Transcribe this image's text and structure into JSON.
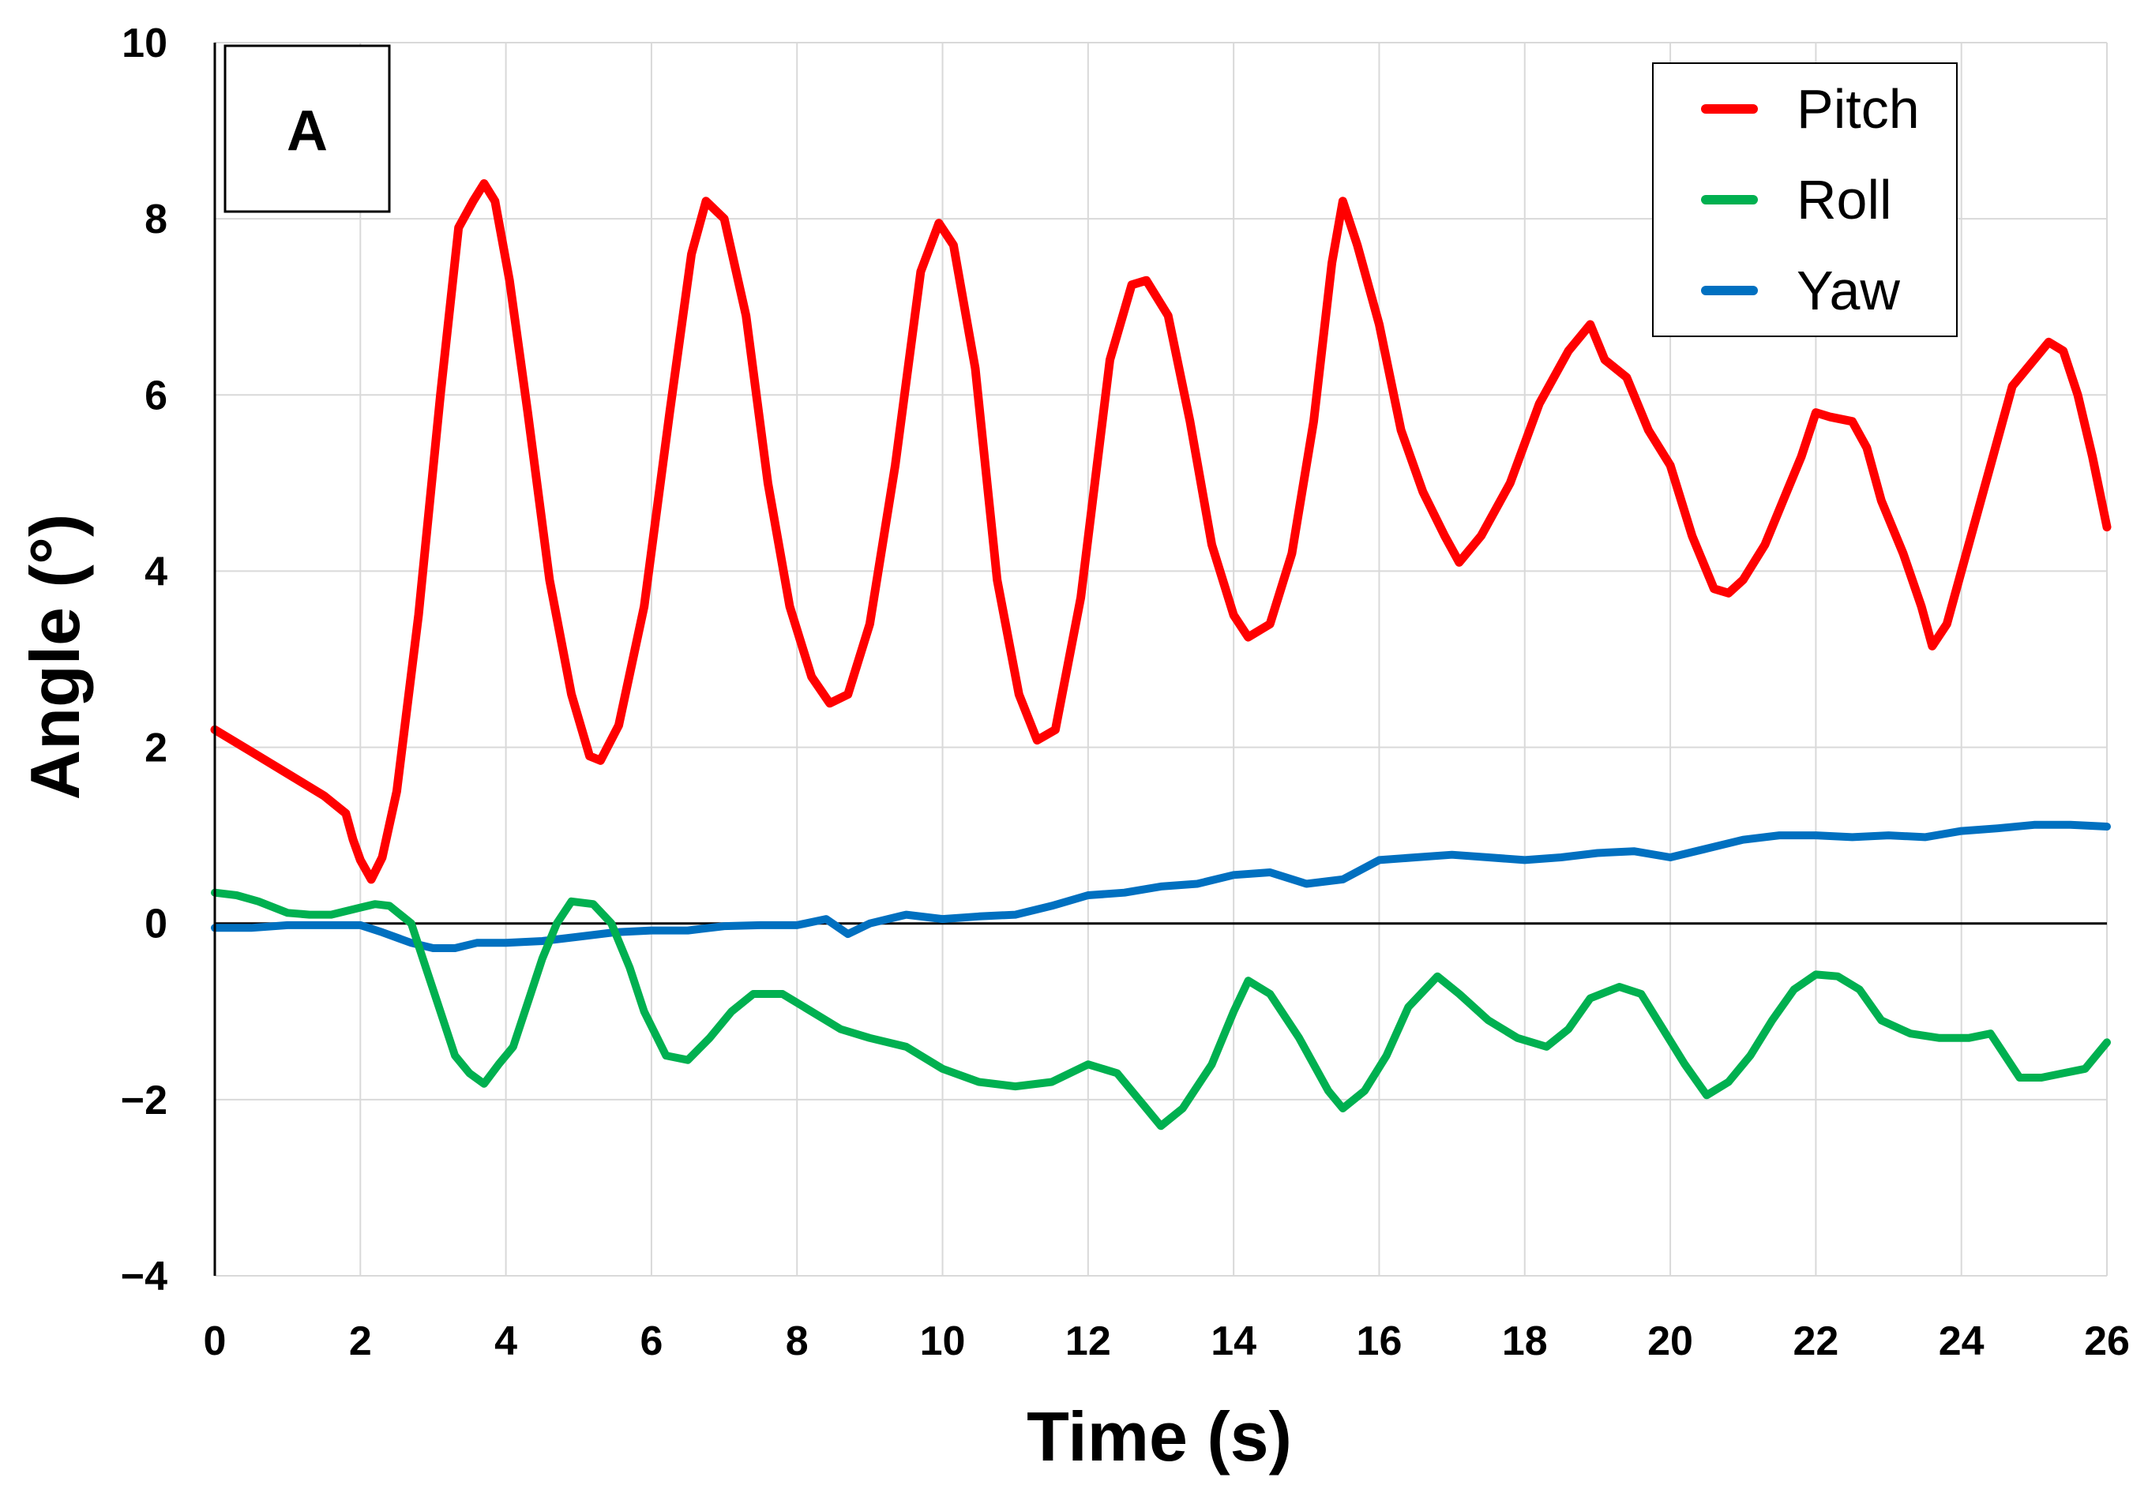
{
  "chart_data": {
    "type": "line",
    "panel_label": "A",
    "title": "",
    "xlabel": "Time (s)",
    "ylabel": "Angle (°)",
    "xlim": [
      0,
      26
    ],
    "ylim": [
      -4,
      10
    ],
    "x_ticks": [
      "0",
      "2",
      "4",
      "6",
      "8",
      "10",
      "12",
      "14",
      "16",
      "18",
      "20",
      "22",
      "24",
      "26"
    ],
    "y_ticks": [
      "−4",
      "−2",
      "0",
      "2",
      "4",
      "6",
      "8",
      "10"
    ],
    "grid": true,
    "legend_position": "top-right",
    "series": [
      {
        "name": "Pitch",
        "color": "#ff0000",
        "points": [
          [
            0,
            2.2
          ],
          [
            0.5,
            1.95
          ],
          [
            1.0,
            1.7
          ],
          [
            1.5,
            1.45
          ],
          [
            1.8,
            1.25
          ],
          [
            1.9,
            0.95
          ],
          [
            2.0,
            0.72
          ],
          [
            2.15,
            0.5
          ],
          [
            2.3,
            0.75
          ],
          [
            2.5,
            1.5
          ],
          [
            2.8,
            3.5
          ],
          [
            3.1,
            6.0
          ],
          [
            3.35,
            7.9
          ],
          [
            3.55,
            8.2
          ],
          [
            3.7,
            8.4
          ],
          [
            3.85,
            8.2
          ],
          [
            4.05,
            7.3
          ],
          [
            4.3,
            5.8
          ],
          [
            4.6,
            3.9
          ],
          [
            4.9,
            2.6
          ],
          [
            5.15,
            1.9
          ],
          [
            5.3,
            1.85
          ],
          [
            5.55,
            2.25
          ],
          [
            5.9,
            3.6
          ],
          [
            6.25,
            5.8
          ],
          [
            6.55,
            7.6
          ],
          [
            6.75,
            8.2
          ],
          [
            7.0,
            8.0
          ],
          [
            7.3,
            6.9
          ],
          [
            7.6,
            5.0
          ],
          [
            7.9,
            3.6
          ],
          [
            8.2,
            2.8
          ],
          [
            8.45,
            2.5
          ],
          [
            8.7,
            2.6
          ],
          [
            9.0,
            3.4
          ],
          [
            9.35,
            5.2
          ],
          [
            9.7,
            7.4
          ],
          [
            9.95,
            7.95
          ],
          [
            10.15,
            7.7
          ],
          [
            10.45,
            6.3
          ],
          [
            10.75,
            3.9
          ],
          [
            11.05,
            2.6
          ],
          [
            11.3,
            2.08
          ],
          [
            11.55,
            2.2
          ],
          [
            11.9,
            3.7
          ],
          [
            12.3,
            6.4
          ],
          [
            12.6,
            7.25
          ],
          [
            12.8,
            7.3
          ],
          [
            13.1,
            6.9
          ],
          [
            13.4,
            5.7
          ],
          [
            13.7,
            4.3
          ],
          [
            14.0,
            3.5
          ],
          [
            14.2,
            3.25
          ],
          [
            14.5,
            3.4
          ],
          [
            14.8,
            4.2
          ],
          [
            15.1,
            5.7
          ],
          [
            15.35,
            7.5
          ],
          [
            15.5,
            8.2
          ],
          [
            15.7,
            7.7
          ],
          [
            16.0,
            6.8
          ],
          [
            16.3,
            5.6
          ],
          [
            16.6,
            4.9
          ],
          [
            16.9,
            4.4
          ],
          [
            17.1,
            4.1
          ],
          [
            17.4,
            4.4
          ],
          [
            17.8,
            5.0
          ],
          [
            18.2,
            5.9
          ],
          [
            18.6,
            6.5
          ],
          [
            18.9,
            6.8
          ],
          [
            19.1,
            6.4
          ],
          [
            19.4,
            6.2
          ],
          [
            19.7,
            5.6
          ],
          [
            20.0,
            5.2
          ],
          [
            20.3,
            4.4
          ],
          [
            20.6,
            3.8
          ],
          [
            20.8,
            3.75
          ],
          [
            21.0,
            3.9
          ],
          [
            21.3,
            4.3
          ],
          [
            21.6,
            4.9
          ],
          [
            21.8,
            5.3
          ],
          [
            22.0,
            5.8
          ],
          [
            22.2,
            5.75
          ],
          [
            22.5,
            5.7
          ],
          [
            22.7,
            5.4
          ],
          [
            22.9,
            4.8
          ],
          [
            23.2,
            4.2
          ],
          [
            23.45,
            3.6
          ],
          [
            23.6,
            3.15
          ],
          [
            23.8,
            3.4
          ],
          [
            24.1,
            4.3
          ],
          [
            24.4,
            5.2
          ],
          [
            24.7,
            6.1
          ],
          [
            24.95,
            6.35
          ],
          [
            25.2,
            6.6
          ],
          [
            25.4,
            6.5
          ],
          [
            25.6,
            6.0
          ],
          [
            25.8,
            5.3
          ],
          [
            26.0,
            4.5
          ]
        ]
      },
      {
        "name": "Roll",
        "color": "#00b050",
        "points": [
          [
            0,
            0.35
          ],
          [
            0.3,
            0.32
          ],
          [
            0.6,
            0.25
          ],
          [
            1.0,
            0.12
          ],
          [
            1.3,
            0.1
          ],
          [
            1.6,
            0.1
          ],
          [
            2.0,
            0.18
          ],
          [
            2.2,
            0.22
          ],
          [
            2.4,
            0.2
          ],
          [
            2.7,
            0.0
          ],
          [
            2.9,
            -0.5
          ],
          [
            3.1,
            -1.0
          ],
          [
            3.3,
            -1.5
          ],
          [
            3.5,
            -1.7
          ],
          [
            3.7,
            -1.82
          ],
          [
            3.9,
            -1.6
          ],
          [
            4.1,
            -1.4
          ],
          [
            4.3,
            -0.9
          ],
          [
            4.5,
            -0.4
          ],
          [
            4.7,
            0.0
          ],
          [
            4.9,
            0.25
          ],
          [
            5.2,
            0.22
          ],
          [
            5.45,
            0.0
          ],
          [
            5.7,
            -0.5
          ],
          [
            5.9,
            -1.0
          ],
          [
            6.2,
            -1.5
          ],
          [
            6.5,
            -1.55
          ],
          [
            6.8,
            -1.3
          ],
          [
            7.1,
            -1.0
          ],
          [
            7.4,
            -0.8
          ],
          [
            7.8,
            -0.8
          ],
          [
            8.2,
            -1.0
          ],
          [
            8.6,
            -1.2
          ],
          [
            9.0,
            -1.3
          ],
          [
            9.5,
            -1.4
          ],
          [
            10.0,
            -1.65
          ],
          [
            10.5,
            -1.8
          ],
          [
            11.0,
            -1.85
          ],
          [
            11.5,
            -1.8
          ],
          [
            12.0,
            -1.6
          ],
          [
            12.4,
            -1.7
          ],
          [
            12.7,
            -2.0
          ],
          [
            13.0,
            -2.3
          ],
          [
            13.3,
            -2.1
          ],
          [
            13.7,
            -1.6
          ],
          [
            14.0,
            -1.0
          ],
          [
            14.2,
            -0.65
          ],
          [
            14.5,
            -0.8
          ],
          [
            14.9,
            -1.3
          ],
          [
            15.3,
            -1.9
          ],
          [
            15.5,
            -2.1
          ],
          [
            15.8,
            -1.9
          ],
          [
            16.1,
            -1.5
          ],
          [
            16.4,
            -0.95
          ],
          [
            16.8,
            -0.6
          ],
          [
            17.1,
            -0.8
          ],
          [
            17.5,
            -1.1
          ],
          [
            17.9,
            -1.3
          ],
          [
            18.3,
            -1.4
          ],
          [
            18.6,
            -1.2
          ],
          [
            18.9,
            -0.85
          ],
          [
            19.3,
            -0.72
          ],
          [
            19.6,
            -0.8
          ],
          [
            19.9,
            -1.2
          ],
          [
            20.2,
            -1.6
          ],
          [
            20.5,
            -1.95
          ],
          [
            20.8,
            -1.8
          ],
          [
            21.1,
            -1.5
          ],
          [
            21.4,
            -1.1
          ],
          [
            21.7,
            -0.75
          ],
          [
            22.0,
            -0.58
          ],
          [
            22.3,
            -0.6
          ],
          [
            22.6,
            -0.75
          ],
          [
            22.9,
            -1.1
          ],
          [
            23.3,
            -1.25
          ],
          [
            23.7,
            -1.3
          ],
          [
            24.1,
            -1.3
          ],
          [
            24.4,
            -1.25
          ],
          [
            24.6,
            -1.5
          ],
          [
            24.8,
            -1.75
          ],
          [
            25.1,
            -1.75
          ],
          [
            25.4,
            -1.7
          ],
          [
            25.7,
            -1.65
          ],
          [
            26.0,
            -1.35
          ]
        ]
      },
      {
        "name": "Yaw",
        "color": "#0070c0",
        "points": [
          [
            0,
            -0.05
          ],
          [
            0.5,
            -0.05
          ],
          [
            1.0,
            -0.02
          ],
          [
            1.5,
            -0.02
          ],
          [
            2.0,
            -0.02
          ],
          [
            2.3,
            -0.1
          ],
          [
            2.7,
            -0.22
          ],
          [
            3.0,
            -0.28
          ],
          [
            3.3,
            -0.28
          ],
          [
            3.6,
            -0.22
          ],
          [
            4.0,
            -0.22
          ],
          [
            4.5,
            -0.2
          ],
          [
            5.0,
            -0.15
          ],
          [
            5.5,
            -0.1
          ],
          [
            6.0,
            -0.08
          ],
          [
            6.5,
            -0.08
          ],
          [
            7.0,
            -0.03
          ],
          [
            7.5,
            -0.02
          ],
          [
            8.0,
            -0.02
          ],
          [
            8.4,
            0.05
          ],
          [
            8.7,
            -0.12
          ],
          [
            9.0,
            0.0
          ],
          [
            9.5,
            0.1
          ],
          [
            10.0,
            0.05
          ],
          [
            10.5,
            0.08
          ],
          [
            11.0,
            0.1
          ],
          [
            11.5,
            0.2
          ],
          [
            12.0,
            0.32
          ],
          [
            12.5,
            0.35
          ],
          [
            13.0,
            0.42
          ],
          [
            13.5,
            0.45
          ],
          [
            14.0,
            0.55
          ],
          [
            14.5,
            0.58
          ],
          [
            15.0,
            0.45
          ],
          [
            15.5,
            0.5
          ],
          [
            16.0,
            0.72
          ],
          [
            16.5,
            0.75
          ],
          [
            17.0,
            0.78
          ],
          [
            17.5,
            0.75
          ],
          [
            18.0,
            0.72
          ],
          [
            18.5,
            0.75
          ],
          [
            19.0,
            0.8
          ],
          [
            19.5,
            0.82
          ],
          [
            20.0,
            0.75
          ],
          [
            20.5,
            0.85
          ],
          [
            21.0,
            0.95
          ],
          [
            21.5,
            1.0
          ],
          [
            22.0,
            1.0
          ],
          [
            22.5,
            0.98
          ],
          [
            23.0,
            1.0
          ],
          [
            23.5,
            0.98
          ],
          [
            24.0,
            1.05
          ],
          [
            24.5,
            1.08
          ],
          [
            25.0,
            1.12
          ],
          [
            25.5,
            1.12
          ],
          [
            26.0,
            1.1
          ]
        ]
      }
    ]
  }
}
